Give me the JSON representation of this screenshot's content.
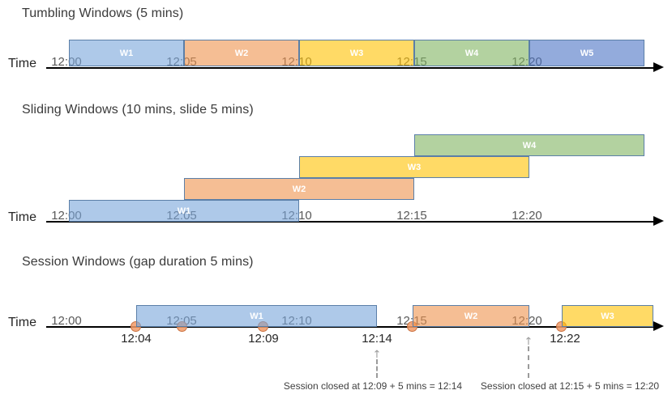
{
  "axis": {
    "label": "Time",
    "ticks": [
      {
        "label": "12:00",
        "min": 0
      },
      {
        "label": "12:05",
        "min": 5
      },
      {
        "label": "12:10",
        "min": 10
      },
      {
        "label": "12:15",
        "min": 15
      },
      {
        "label": "12:20",
        "min": 20
      }
    ]
  },
  "sections": [
    {
      "id": "tumbling",
      "title": "Tumbling Windows (5 mins)",
      "windows": [
        {
          "label": "W1",
          "color": "blue",
          "start_min": 0,
          "end_min": 5,
          "row": 0
        },
        {
          "label": "W2",
          "color": "orange",
          "start_min": 5,
          "end_min": 10,
          "row": 0
        },
        {
          "label": "W3",
          "color": "yellow",
          "start_min": 10,
          "end_min": 15,
          "row": 0
        },
        {
          "label": "W4",
          "color": "green",
          "start_min": 15,
          "end_min": 20,
          "row": 0
        },
        {
          "label": "W5",
          "color": "periwinkle",
          "start_min": 20,
          "end_min": 25,
          "row": 0
        }
      ]
    },
    {
      "id": "sliding",
      "title": "Sliding Windows (10 mins, slide 5 mins)",
      "windows": [
        {
          "label": "W1",
          "color": "blue",
          "start_min": 0,
          "end_min": 10,
          "row": 0
        },
        {
          "label": "W2",
          "color": "orange",
          "start_min": 5,
          "end_min": 15,
          "row": 1
        },
        {
          "label": "W3",
          "color": "yellow",
          "start_min": 10,
          "end_min": 20,
          "row": 2
        },
        {
          "label": "W4",
          "color": "green",
          "start_min": 15,
          "end_min": 25,
          "row": 3
        }
      ]
    },
    {
      "id": "session",
      "title": "Session Windows (gap duration 5 mins)",
      "windows": [
        {
          "label": "W1",
          "color": "blue",
          "start": "12:04",
          "end": "12:14"
        },
        {
          "label": "W2",
          "color": "orange",
          "start": "12:15",
          "end": "12:20"
        },
        {
          "label": "W3",
          "color": "yellow",
          "start": "12:22",
          "end": ""
        }
      ],
      "events": [
        "12:04",
        "12:05",
        "12:09",
        "12:15",
        "12:22"
      ],
      "event_labels": [
        "12:04",
        "12:09",
        "12:14",
        "12:22"
      ],
      "annotations": [
        {
          "text": "Session closed at 12:09 + 5 mins = 12:14"
        },
        {
          "text": "Session closed at 12:15 + 5 mins = 12:20"
        }
      ]
    }
  ],
  "colors": {
    "window_border": "#5B7FA8",
    "window_fill_blue": "#78A5DA",
    "window_fill_orange": "#EE934D",
    "window_fill_yellow": "#FFC100",
    "window_fill_green": "#80B461",
    "window_fill_periwinkle": "#4B73C5",
    "window_label_text": "#FFFFFF",
    "axis": "#000000",
    "tick_text": "#595959",
    "title_text": "#3A3A3A",
    "event_dot_fill": "#F19A67",
    "event_dot_border": "#C86E3C",
    "event_label_text": "#262626",
    "dashed_arrow": "#9B9B9B",
    "annotation_text": "#3F3F3F"
  }
}
